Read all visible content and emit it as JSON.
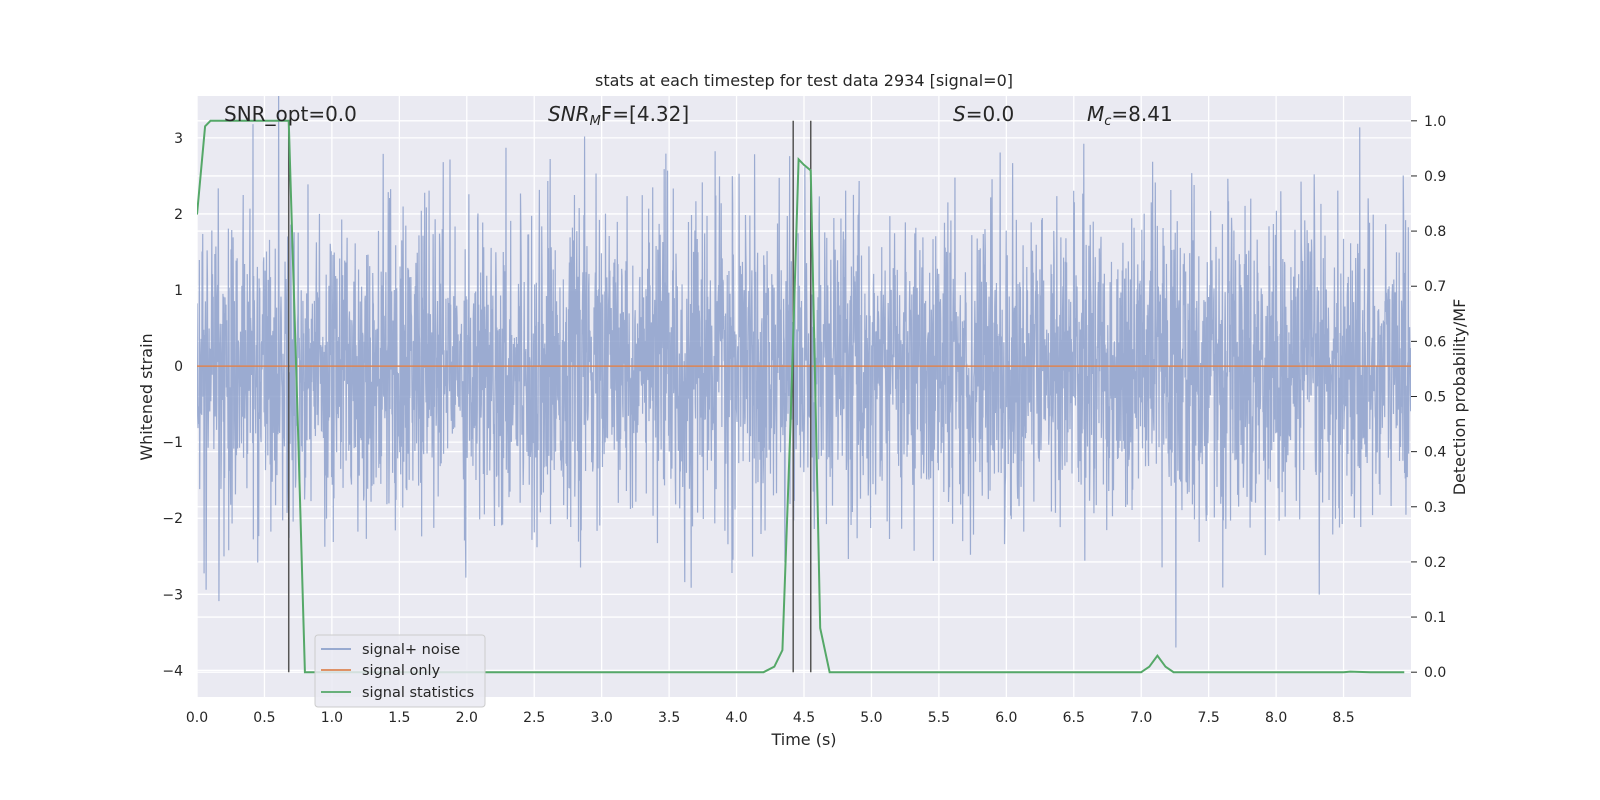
{
  "chart_data": {
    "type": "line",
    "title": "stats at each timestep for test data 2934 [signal=0]",
    "xlabel": "Time (s)",
    "ylabel": "Whitened strain",
    "ylabel_right": "Detection probability/MF",
    "xlim": [
      0.0,
      9.0
    ],
    "ylim": [
      -4.35,
      3.55
    ],
    "ylim_right": [
      -0.045,
      1.045
    ],
    "x_ticks": [
      "0.0",
      "0.5",
      "1.0",
      "1.5",
      "2.0",
      "2.5",
      "3.0",
      "3.5",
      "4.0",
      "4.5",
      "5.0",
      "5.5",
      "6.0",
      "6.5",
      "7.0",
      "7.5",
      "8.0",
      "8.5"
    ],
    "y_ticks": [
      "3",
      "2",
      "1",
      "0",
      "−1",
      "−2",
      "−3",
      "−4"
    ],
    "y_right_ticks": [
      "1.0",
      "0.9",
      "0.8",
      "0.7",
      "0.6",
      "0.5",
      "0.4",
      "0.3",
      "0.2",
      "0.1",
      "0.0"
    ],
    "annotations": {
      "snr_opt": "SNR_opt=0.0",
      "snr_mf_var": "SNR",
      "snr_mf_sub": "M",
      "snr_mf_rest": "F=[4.32]",
      "s_var": "S",
      "s_rest": "=0.0",
      "mc_var": "M",
      "mc_sub": "c",
      "mc_rest": "=8.41"
    },
    "legend": {
      "position": "lower left",
      "entries": [
        {
          "label": "signal+ noise",
          "color": "#8da0cb"
        },
        {
          "label": "signal only",
          "color": "#dd8452"
        },
        {
          "label": "signal statistics",
          "color": "#55a868"
        }
      ]
    },
    "vertical_lines": [
      0.68,
      4.42,
      4.55
    ],
    "series": [
      {
        "name": "signal+ noise",
        "axis": "left",
        "color": "#8da0cb",
        "amplitude_sigma": 1.0,
        "note_range": [
          -3.7,
          3.6
        ]
      },
      {
        "name": "signal only",
        "axis": "left",
        "color": "#dd8452",
        "x": [
          0.0,
          9.0
        ],
        "y": [
          0.0,
          0.0
        ]
      },
      {
        "name": "signal statistics",
        "axis": "right",
        "color": "#55a868",
        "x": [
          0.0,
          0.06,
          0.1,
          0.2,
          0.3,
          0.5,
          0.62,
          0.68,
          0.75,
          0.8,
          0.9,
          1.5,
          2.5,
          3.5,
          4.2,
          4.28,
          4.34,
          4.4,
          4.46,
          4.5,
          4.55,
          4.62,
          4.69,
          4.8,
          5.5,
          6.5,
          7.0,
          7.06,
          7.12,
          7.18,
          7.24,
          7.5,
          8.0,
          8.5,
          8.55,
          8.7,
          8.95
        ],
        "y": [
          0.83,
          0.99,
          1.0,
          1.0,
          1.0,
          1.0,
          1.0,
          1.0,
          0.43,
          0.0,
          0.0,
          0.0,
          0.0,
          0.0,
          0.0,
          0.01,
          0.04,
          0.45,
          0.93,
          0.92,
          0.91,
          0.08,
          0.0,
          0.0,
          0.0,
          0.0,
          0.0,
          0.01,
          0.03,
          0.01,
          0.0,
          0.0,
          0.0,
          0.0,
          0.001,
          0.0,
          0.0
        ]
      }
    ]
  }
}
